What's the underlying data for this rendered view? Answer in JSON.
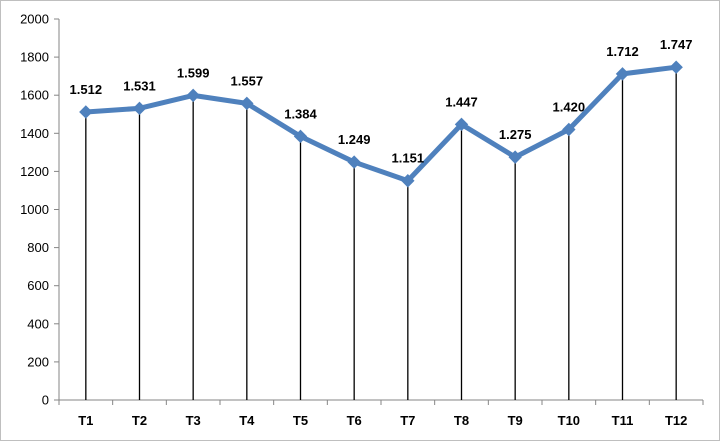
{
  "chart_data": {
    "type": "line",
    "categories": [
      "T1",
      "T2",
      "T3",
      "T4",
      "T5",
      "T6",
      "T7",
      "T8",
      "T9",
      "T10",
      "T11",
      "T12"
    ],
    "values": [
      1512,
      1531,
      1599,
      1557,
      1384,
      1249,
      1151,
      1447,
      1275,
      1420,
      1712,
      1747
    ],
    "data_labels": [
      "1.512",
      "1.531",
      "1.599",
      "1.557",
      "1.384",
      "1.249",
      "1.151",
      "1.447",
      "1.275",
      "1.420",
      "1.712",
      "1.747"
    ],
    "y_ticks": [
      "0",
      "200",
      "400",
      "600",
      "800",
      "1000",
      "1200",
      "1400",
      "1600",
      "1800",
      "2000"
    ],
    "ylim": [
      0,
      2000
    ],
    "y_step": 200,
    "drop_lines": true,
    "marker": "diamond",
    "legend": "none",
    "grid": false,
    "title": "",
    "xlabel": "",
    "ylabel": "",
    "colors": {
      "line": "#4f81bd",
      "marker": "#4f81bd",
      "drop_line": "#000000",
      "axis": "#868686"
    }
  }
}
